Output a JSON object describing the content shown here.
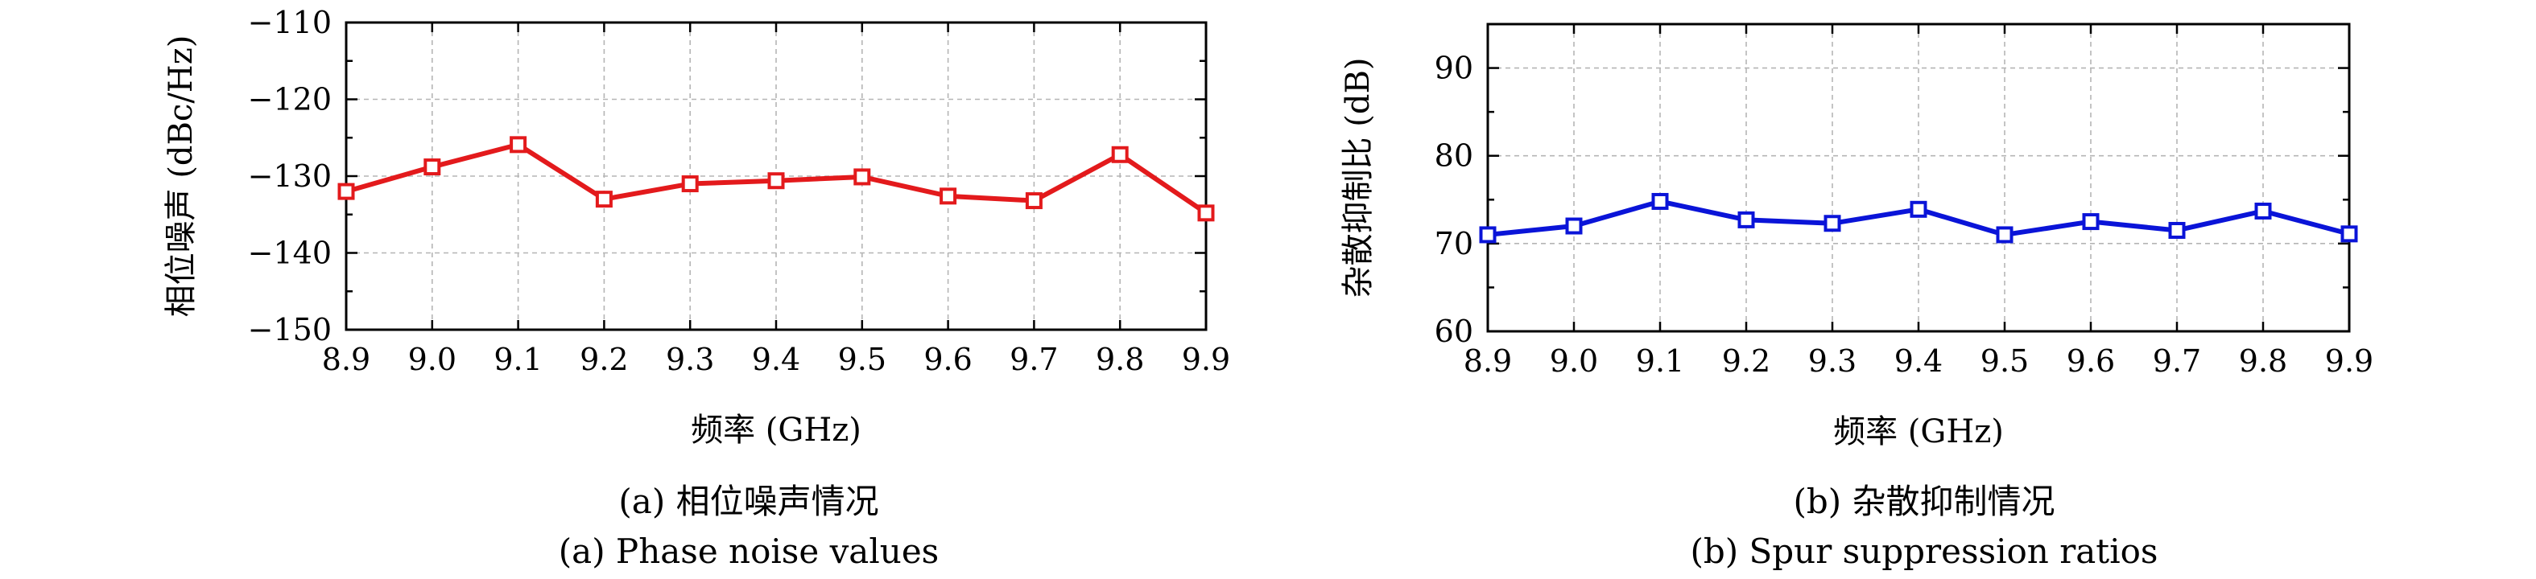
{
  "chart_data": [
    {
      "type": "line",
      "categories": [
        "8.9",
        "9.0",
        "9.1",
        "9.2",
        "9.3",
        "9.4",
        "9.5",
        "9.6",
        "9.7",
        "9.8",
        "9.9"
      ],
      "x": [
        8.9,
        9.0,
        9.1,
        9.2,
        9.3,
        9.4,
        9.5,
        9.6,
        9.7,
        9.8,
        9.9
      ],
      "series": [
        {
          "values": [
            -132.0,
            -128.8,
            -125.9,
            -133.0,
            -131.0,
            -130.6,
            -130.1,
            -132.6,
            -133.2,
            -127.2,
            -134.8
          ],
          "color": "#e31a1c",
          "marker": "open-square"
        }
      ],
      "xlabel": "频率 (GHz)",
      "ylabel": "相位噪声 (dBc/Hz)",
      "xlim": [
        8.9,
        9.9
      ],
      "ylim": [
        -150,
        -110
      ],
      "yticks": [
        -150,
        -140,
        -130,
        -120,
        -110
      ],
      "ytick_labels": [
        "−150",
        "−140",
        "−130",
        "−120",
        "−110"
      ],
      "xtick_labels": [
        "8.9",
        "9.0",
        "9.1",
        "9.2",
        "9.3",
        "9.4",
        "9.5",
        "9.6",
        "9.7",
        "9.8",
        "9.9"
      ],
      "caption_cn": "(a) 相位噪声情况",
      "caption_en": "(a) Phase noise values",
      "grid": true
    },
    {
      "type": "line",
      "categories": [
        "8.9",
        "9.0",
        "9.1",
        "9.2",
        "9.3",
        "9.4",
        "9.5",
        "9.6",
        "9.7",
        "9.8",
        "9.9"
      ],
      "x": [
        8.9,
        9.0,
        9.1,
        9.2,
        9.3,
        9.4,
        9.5,
        9.6,
        9.7,
        9.8,
        9.9
      ],
      "series": [
        {
          "values": [
            71.0,
            72.0,
            74.8,
            72.7,
            72.3,
            73.9,
            71.0,
            72.5,
            71.5,
            73.7,
            71.1
          ],
          "color": "#0a14d8",
          "marker": "open-square"
        }
      ],
      "xlabel": "频率 (GHz)",
      "ylabel": "杂散抑制比 (dB)",
      "xlim": [
        8.9,
        9.9
      ],
      "ylim": [
        60,
        95
      ],
      "yticks": [
        60,
        70,
        80,
        90
      ],
      "ytick_labels": [
        "60",
        "70",
        "80",
        "90"
      ],
      "xtick_labels": [
        "8.9",
        "9.0",
        "9.1",
        "9.2",
        "9.3",
        "9.4",
        "9.5",
        "9.6",
        "9.7",
        "9.8",
        "9.9"
      ],
      "caption_cn": "(b) 杂散抑制情况",
      "caption_en": "(b) Spur suppression ratios",
      "grid": true
    }
  ]
}
